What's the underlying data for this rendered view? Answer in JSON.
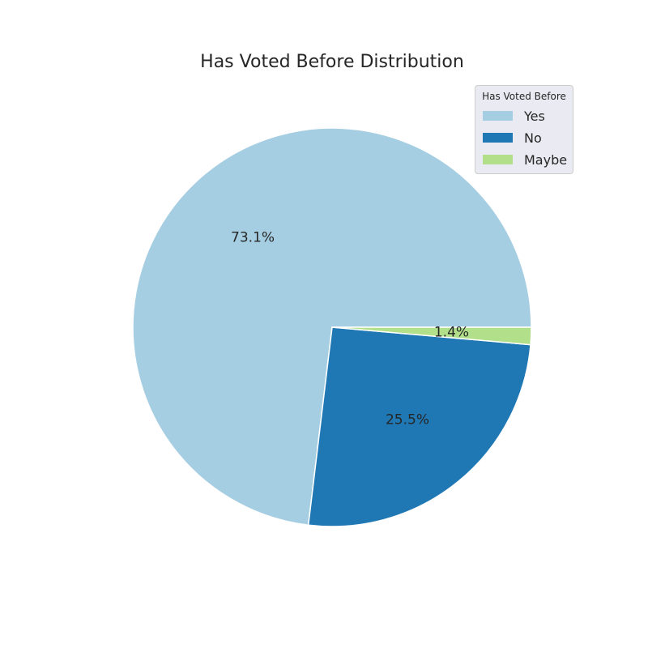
{
  "chart_data": {
    "type": "pie",
    "title": "Has Voted Before Distribution",
    "legend_title": "Has Voted Before",
    "legend_position": "top-right",
    "slices": [
      {
        "label": "Yes",
        "value": 73.1,
        "pct_label": "73.1%",
        "color": "#a6cee3"
      },
      {
        "label": "No",
        "value": 25.5,
        "pct_label": "25.5%",
        "color": "#1f78b4"
      },
      {
        "label": "Maybe",
        "value": 1.4,
        "pct_label": "1.4%",
        "color": "#b2df8a"
      }
    ]
  }
}
